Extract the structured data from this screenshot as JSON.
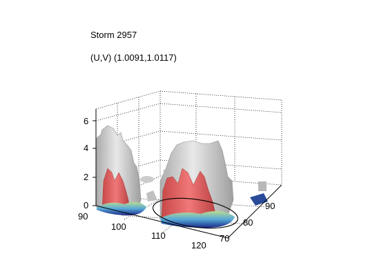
{
  "chart_data": {
    "type": "3d-surface",
    "title": "Storm 2957",
    "subtitle": "(U,V) (1.0091,1.0117)",
    "x_ticks": [
      "90",
      "100",
      "110",
      "120"
    ],
    "y_ticks": [
      "70",
      "80",
      "90"
    ],
    "z_ticks": [
      "0",
      "2",
      "4",
      "6"
    ],
    "xlim": [
      90,
      120
    ],
    "ylim": [
      70,
      90
    ],
    "zlim": [
      0,
      7
    ],
    "grid": true,
    "isosurface_colors": {
      "outer": "#c8c8c8",
      "inner": "#e06060",
      "base_low": "#1a2a8a",
      "base_mid": "#50a0d0",
      "base_high": "#b0d890"
    }
  }
}
